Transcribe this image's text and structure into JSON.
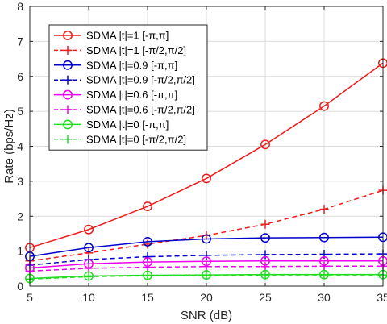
{
  "chart_data": {
    "type": "line",
    "xlabel": "SNR (dB)",
    "ylabel": "Rate (bps/Hz)",
    "x": [
      5,
      10,
      15,
      20,
      25,
      30,
      35
    ],
    "xlim": [
      5,
      35
    ],
    "ylim": [
      0,
      8
    ],
    "xticks": [
      "5",
      "10",
      "15",
      "20",
      "25",
      "30",
      "35"
    ],
    "yticks": [
      "0",
      "1",
      "2",
      "3",
      "4",
      "5",
      "6",
      "7",
      "8"
    ],
    "grid": true,
    "legend_position": "top-left",
    "series": [
      {
        "name": "SDMA |t|=1 [-π,π]",
        "color": "#ee1c1c",
        "line": "solid",
        "marker": "circle",
        "values": [
          1.1,
          1.62,
          2.28,
          3.08,
          4.05,
          5.15,
          6.38
        ]
      },
      {
        "name": "SDMA |t|=1 [-π/2,π/2]",
        "color": "#ee1c1c",
        "line": "dashed",
        "marker": "plus",
        "values": [
          0.72,
          0.95,
          1.2,
          1.45,
          1.77,
          2.2,
          2.74
        ]
      },
      {
        "name": "SDMA |t|=0.9 [-π,π]",
        "color": "#0000cc",
        "line": "solid",
        "marker": "circle",
        "values": [
          0.85,
          1.1,
          1.27,
          1.35,
          1.38,
          1.39,
          1.4
        ]
      },
      {
        "name": "SDMA |t|=0.9 [-π/2,π/2]",
        "color": "#0000cc",
        "line": "dashed",
        "marker": "plus",
        "values": [
          0.6,
          0.76,
          0.84,
          0.88,
          0.9,
          0.91,
          0.92
        ]
      },
      {
        "name": "SDMA |t|=0.6 [-π,π]",
        "color": "#ee00ee",
        "line": "solid",
        "marker": "circle",
        "values": [
          0.52,
          0.64,
          0.69,
          0.71,
          0.72,
          0.72,
          0.72
        ]
      },
      {
        "name": "SDMA |t|=0.6 [-π/2,π/2]",
        "color": "#ee00ee",
        "line": "dashed",
        "marker": "plus",
        "values": [
          0.43,
          0.51,
          0.54,
          0.56,
          0.56,
          0.57,
          0.57
        ]
      },
      {
        "name": "SDMA |t|=0 [-π,π]",
        "color": "#22dd22",
        "line": "solid",
        "marker": "circle",
        "values": [
          0.22,
          0.29,
          0.31,
          0.32,
          0.33,
          0.33,
          0.33
        ]
      },
      {
        "name": "SDMA |t|=0 [-π/2,π/2]",
        "color": "#22dd22",
        "line": "dashed",
        "marker": "plus",
        "values": [
          0.2,
          0.27,
          0.3,
          0.31,
          0.32,
          0.32,
          0.32
        ]
      }
    ]
  }
}
